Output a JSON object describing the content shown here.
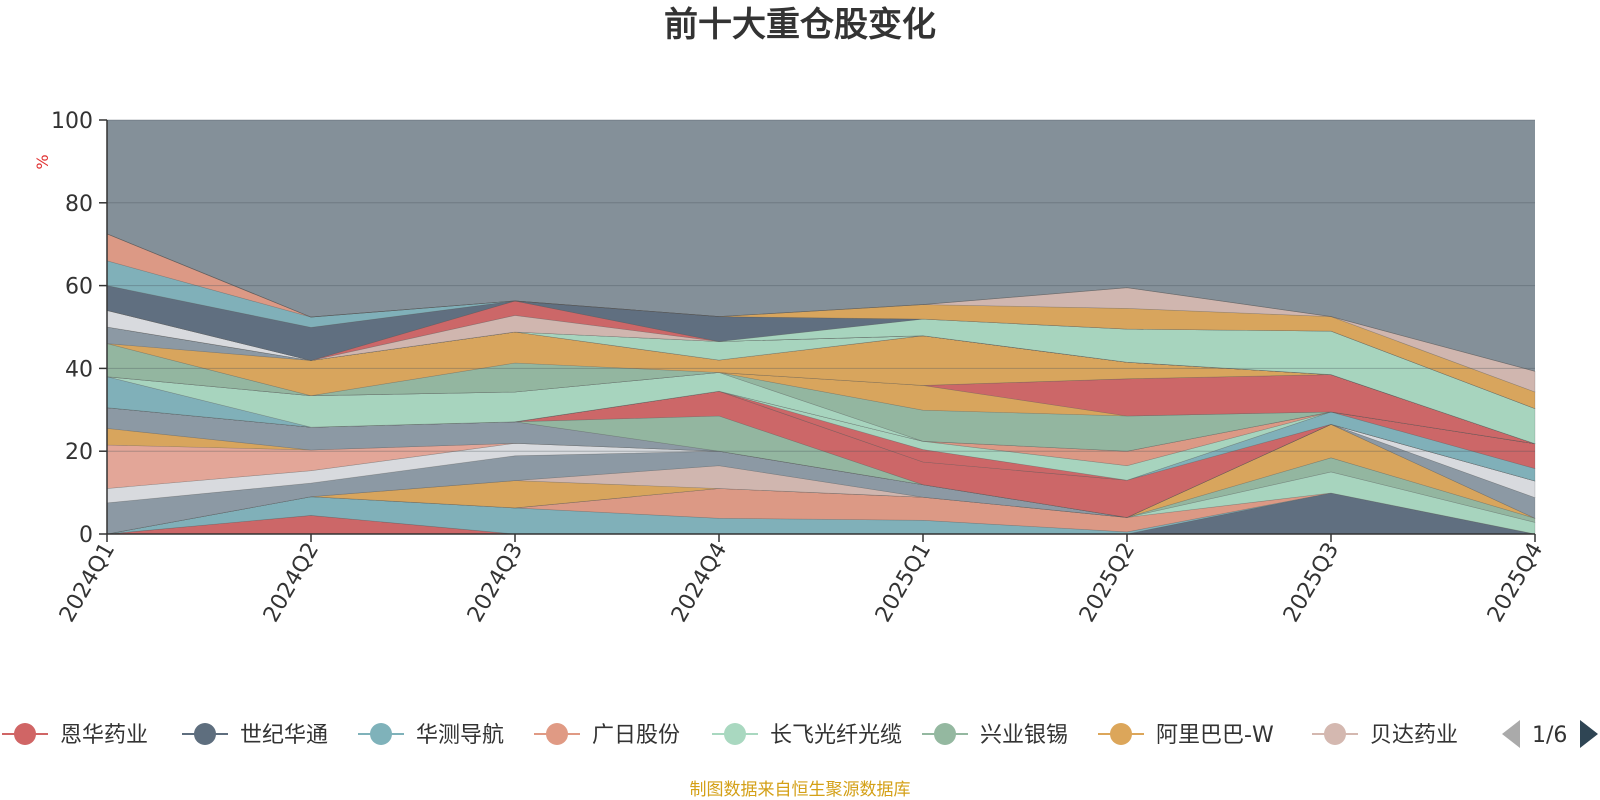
{
  "chart_data": {
    "type": "area",
    "stacked": true,
    "title": "前十大重仓股变化",
    "ylabel": "%",
    "ylim": [
      0,
      100
    ],
    "yticks": [
      0,
      20,
      40,
      60,
      80,
      100
    ],
    "categories": [
      "2024Q1",
      "2024Q2",
      "2024Q3",
      "2024Q4",
      "2025Q1",
      "2025Q2",
      "2025Q3",
      "2025Q4"
    ],
    "series": [
      {
        "name": "恩华药业",
        "color": "#d06565",
        "values": [
          0,
          4.5,
          0,
          0,
          0,
          0,
          0,
          0
        ]
      },
      {
        "name": "世纪华通",
        "color": "#5e6e7e",
        "values": [
          0,
          0,
          0,
          0,
          0,
          0,
          9.9,
          0
        ]
      },
      {
        "name": "华测导航",
        "color": "#7fb2ba",
        "values": [
          0,
          4.5,
          6.3,
          3.8,
          3.3,
          0.5,
          0,
          0
        ]
      },
      {
        "name": "广日股份",
        "color": "#e09a84",
        "values": [
          0,
          0,
          0,
          7.2,
          5.6,
          3.5,
          0,
          0
        ]
      },
      {
        "name": "长飞光纤光缆",
        "color": "#a9d8c0",
        "values": [
          0,
          0,
          0,
          0,
          0,
          0,
          5.1,
          2.8
        ]
      },
      {
        "name": "兴业银锡",
        "color": "#94b8a0",
        "values": [
          0,
          0,
          0,
          0,
          0,
          0,
          3.4,
          1.0
        ]
      },
      {
        "name": "阿里巴巴-W",
        "color": "#dca65a",
        "values": [
          0,
          0,
          6.6,
          0,
          0,
          0,
          8.1,
          0
        ]
      },
      {
        "name": "贝达药业",
        "color": "#d4b8b0",
        "values": [
          0,
          0,
          0,
          5.5,
          0,
          0,
          0,
          0
        ]
      }
    ],
    "other_bands": [
      {
        "color": "#8c9aa4",
        "values": [
          7.5,
          3.3,
          6.0,
          3.5,
          3.0,
          0,
          0,
          5.0
        ]
      },
      {
        "color": "#dcdee2",
        "values": [
          3.5,
          3.0,
          3.0,
          0,
          0,
          0,
          0,
          4.0
        ]
      },
      {
        "color": "#e8a898",
        "values": [
          10.5,
          5.0,
          0,
          0,
          0,
          0,
          0,
          0
        ]
      },
      {
        "color": "#dca65a",
        "values": [
          4.0,
          0,
          0,
          0,
          0,
          0,
          0,
          0
        ]
      },
      {
        "color": "#8c9aa4",
        "values": [
          5.0,
          5.5,
          5.2,
          0,
          0,
          0,
          0,
          0
        ]
      },
      {
        "color": "#94b8a0",
        "values": [
          0,
          0,
          0,
          8.5,
          0,
          0,
          0,
          0
        ]
      },
      {
        "color": "#d06565",
        "values": [
          0,
          0,
          0,
          6.0,
          5.5,
          9.0,
          0,
          0
        ]
      },
      {
        "color": "#7fb2ba",
        "values": [
          0,
          0,
          0,
          0,
          0,
          0,
          3.0,
          3.0
        ]
      },
      {
        "color": "#d06565",
        "values": [
          0,
          0,
          0,
          0,
          3.0,
          0,
          0,
          6.0
        ]
      },
      {
        "color": "#a9d8c0",
        "values": [
          0,
          0,
          0,
          0,
          2.0,
          3.5,
          0,
          0
        ]
      },
      {
        "color": "#e09a84",
        "values": [
          0,
          0,
          0,
          0,
          0,
          3.5,
          0,
          0
        ]
      },
      {
        "color": "#7fb2ba",
        "values": [
          7.5,
          0,
          0,
          0,
          0,
          0,
          0,
          0
        ]
      },
      {
        "color": "#a9d8c0",
        "values": [
          0,
          7.6,
          7.2,
          4.5,
          0,
          0,
          0,
          0
        ]
      },
      {
        "color": "#94b8a0",
        "values": [
          0,
          0,
          0,
          0,
          7.5,
          8.5,
          0,
          0
        ]
      },
      {
        "color": "#dca65a",
        "values": [
          0,
          0,
          0,
          0,
          6.0,
          0,
          0,
          0
        ]
      },
      {
        "color": "#d06565",
        "values": [
          0,
          0,
          0,
          0,
          0,
          9.0,
          9.0,
          0
        ]
      },
      {
        "color": "#94b8a0",
        "values": [
          8.0,
          0,
          7.0,
          0,
          0,
          0,
          0,
          0
        ]
      },
      {
        "color": "#dca65a",
        "values": [
          0,
          8.5,
          7.5,
          3.0,
          12.0,
          4.0,
          0,
          0
        ]
      },
      {
        "color": "#8c9aa4",
        "values": [
          4.0,
          0,
          0,
          0,
          0,
          0,
          0,
          0
        ]
      },
      {
        "color": "#7fb2ba",
        "values": [
          0,
          0,
          0,
          0,
          0,
          0,
          0,
          0
        ]
      },
      {
        "color": "#a9d8c0",
        "values": [
          0,
          0,
          0,
          4.5,
          0,
          0,
          0,
          0
        ]
      },
      {
        "color": "#5e6e7e",
        "values": [
          0,
          0,
          0,
          0,
          0,
          0,
          0,
          0
        ]
      },
      {
        "color": "#dcdee2",
        "values": [
          4.0,
          0,
          0,
          0,
          0,
          0,
          0,
          0
        ]
      },
      {
        "color": "#5e6e7e",
        "values": [
          0,
          0,
          0,
          0,
          0,
          0,
          0,
          0
        ]
      },
      {
        "color": "#d4b8b0",
        "values": [
          0,
          0,
          4.0,
          0,
          0,
          0,
          0,
          0
        ]
      },
      {
        "color": "#d06565",
        "values": [
          0,
          0,
          3.5,
          0,
          0,
          0,
          0,
          0
        ]
      },
      {
        "color": "#a9d8c0",
        "values": [
          0,
          0,
          0,
          0,
          4.0,
          8.0,
          10.5,
          8.5
        ]
      },
      {
        "color": "#5e6e7e",
        "values": [
          6.0,
          8.0,
          0,
          6.0,
          0,
          0,
          0,
          0
        ]
      },
      {
        "color": "#7fb2ba",
        "values": [
          6.0,
          2.5,
          0,
          0,
          0,
          0,
          0,
          0
        ]
      },
      {
        "color": "#e09a84",
        "values": [
          6.5,
          0,
          0,
          0,
          0,
          0,
          0,
          0
        ]
      },
      {
        "color": "#dca65a",
        "values": [
          0,
          0,
          0,
          0,
          3.5,
          5.0,
          3.5,
          4.0
        ]
      },
      {
        "color": "#d4b8b0",
        "values": [
          0,
          0,
          0,
          0,
          0,
          5.0,
          0,
          5.0
        ]
      },
      {
        "color": "#8c9aa4",
        "values": [
          0,
          0,
          0,
          0,
          0,
          0,
          0,
          0
        ]
      },
      {
        "color": "#8fa6a0",
        "values": [
          0,
          0,
          0,
          0,
          0,
          0,
          0,
          0
        ]
      }
    ],
    "background_color": "#849099",
    "legend_position": "bottom",
    "legend_page": "1/6"
  },
  "source_note": "制图数据来自恒生聚源数据库"
}
